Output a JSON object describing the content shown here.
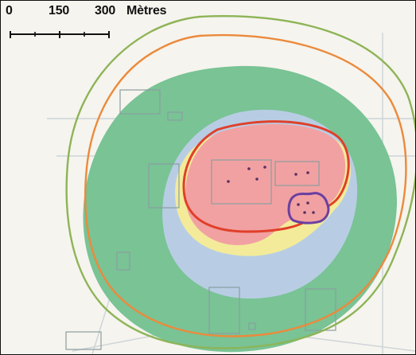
{
  "scale_bar": {
    "labels": [
      "0",
      "150",
      "300"
    ],
    "unit": "Mètres"
  },
  "colors": {
    "background": "#f6f4ee",
    "outer_zone": "#79c395",
    "blue_zone": "#b8cde4",
    "yellow_zone": "#f3eb9a",
    "pink_zone": "#f2a1a2",
    "core_zone": "#eca6a6",
    "red_contour": "#e0402a",
    "orange_contour": "#eb8a3c",
    "green_contour": "#8db457",
    "purple_contour": "#6a3fa0",
    "building_outline": "#8a9ea0",
    "points": "#5a3060"
  }
}
